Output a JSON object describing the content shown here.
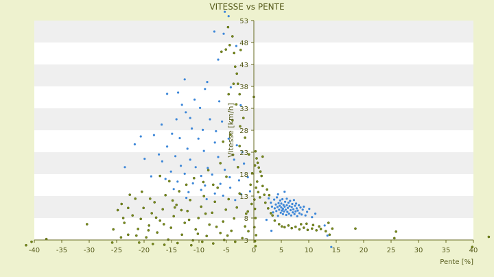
{
  "colors": {
    "background": "#eef2cf",
    "plot_band_light": "#ffffff",
    "plot_band_dark": "#efefef",
    "axis": "#66691f",
    "text": "#555a1a",
    "series_1": "#3d87d8",
    "series_2": "#7a8c1a"
  },
  "chart_data": {
    "type": "scatter",
    "title": "VITESSE vs PENTE",
    "xlabel": "Pente [%]",
    "ylabel": "Vitesse [km/h]",
    "xlim": [
      -40,
      40
    ],
    "ylim": [
      3,
      53
    ],
    "x_ticks": [
      -40,
      -35,
      -30,
      -25,
      -20,
      -15,
      -10,
      -5,
      0,
      5,
      10,
      15,
      20,
      25,
      30,
      35,
      40
    ],
    "y_ticks": [
      3,
      8,
      13,
      18,
      23,
      28,
      33,
      38,
      43,
      48,
      53
    ],
    "y_axis_position": "x = 0",
    "background_bands": "alternating white/grey per 5 km/h",
    "legend": "none",
    "series": [
      {
        "color": "#3d87d8",
        "points": [
          [
            -5.3,
            55.0
          ],
          [
            -4.6,
            54.0
          ],
          [
            -7.2,
            50.5
          ],
          [
            -5.5,
            50.0
          ],
          [
            -3.2,
            47.2
          ],
          [
            -6.5,
            44.1
          ],
          [
            -8.5,
            39.0
          ],
          [
            -4.2,
            37.8
          ],
          [
            -12.6,
            39.6
          ],
          [
            -13.8,
            36.6
          ],
          [
            -10.8,
            35.0
          ],
          [
            -15.8,
            36.3
          ],
          [
            -9.8,
            33.1
          ],
          [
            -12.4,
            32.1
          ],
          [
            -14.1,
            30.5
          ],
          [
            -8.0,
            30.5
          ],
          [
            -5.8,
            30.0
          ],
          [
            -11.3,
            28.4
          ],
          [
            -16.8,
            29.3
          ],
          [
            -18.2,
            26.9
          ],
          [
            -21.7,
            24.8
          ],
          [
            -13.5,
            26.2
          ],
          [
            -10.1,
            26.1
          ],
          [
            -7.1,
            25.2
          ],
          [
            -15.8,
            24.3
          ],
          [
            -12.1,
            23.8
          ],
          [
            -9.1,
            23.3
          ],
          [
            -17.3,
            22.5
          ],
          [
            -14.3,
            22.1
          ],
          [
            -11.6,
            21.3
          ],
          [
            -6.5,
            21.9
          ],
          [
            -19.9,
            21.5
          ],
          [
            -16.7,
            20.9
          ],
          [
            -13.3,
            19.9
          ],
          [
            -10.6,
            19.6
          ],
          [
            -8.4,
            19.4
          ],
          [
            -5.3,
            19.0
          ],
          [
            -3.6,
            21.3
          ],
          [
            -15.1,
            18.6
          ],
          [
            -12.6,
            18.1
          ],
          [
            -9.6,
            17.6
          ],
          [
            -7.6,
            17.9
          ],
          [
            -23.5,
            19.6
          ],
          [
            -16.1,
            16.9
          ],
          [
            -13.9,
            16.3
          ],
          [
            -11.1,
            15.9
          ],
          [
            -8.9,
            15.4
          ],
          [
            -6.1,
            15.8
          ],
          [
            -4.3,
            14.9
          ],
          [
            -14.6,
            14.6
          ],
          [
            -11.9,
            13.9
          ],
          [
            -9.6,
            14.4
          ],
          [
            -7.1,
            13.6
          ],
          [
            -3.4,
            12.1
          ],
          [
            -2.3,
            13.4
          ],
          [
            -12.3,
            12.6
          ],
          [
            -8.6,
            12.3
          ],
          [
            -5.6,
            13.1
          ],
          [
            -4.4,
            17.3
          ],
          [
            -2.7,
            16.6
          ],
          [
            -18.7,
            17.5
          ],
          [
            -20.6,
            26.6
          ],
          [
            -14.9,
            27.2
          ],
          [
            -11.6,
            30.8
          ],
          [
            -9.3,
            28.1
          ],
          [
            -6.9,
            27.8
          ],
          [
            -4.6,
            26.1
          ],
          [
            -3.1,
            24.6
          ],
          [
            -2.4,
            33.7
          ],
          [
            -2.1,
            23.0
          ],
          [
            -6.3,
            34.6
          ],
          [
            -8.9,
            37.4
          ],
          [
            -13.1,
            33.8
          ],
          [
            -1.8,
            20.4
          ],
          [
            -1.1,
            17.3
          ],
          [
            -0.7,
            14.1
          ],
          [
            2.7,
            12.5
          ],
          [
            3.1,
            11.5
          ],
          [
            3.3,
            10.6
          ],
          [
            3.5,
            9.3
          ],
          [
            3.7,
            12.2
          ],
          [
            3.8,
            10.2
          ],
          [
            4.0,
            11.1
          ],
          [
            4.1,
            9.6
          ],
          [
            4.2,
            12.7
          ],
          [
            4.3,
            10.5
          ],
          [
            4.4,
            8.5
          ],
          [
            4.5,
            11.4
          ],
          [
            4.6,
            9.9
          ],
          [
            4.7,
            10.8
          ],
          [
            4.8,
            12.0
          ],
          [
            4.9,
            9.2
          ],
          [
            5.0,
            10.4
          ],
          [
            5.0,
            11.3
          ],
          [
            5.1,
            9.7
          ],
          [
            5.2,
            12.3
          ],
          [
            5.3,
            10.1
          ],
          [
            5.3,
            8.9
          ],
          [
            5.4,
            11.0
          ],
          [
            5.5,
            9.5
          ],
          [
            5.6,
            10.6
          ],
          [
            5.7,
            11.7
          ],
          [
            5.8,
            9.9
          ],
          [
            5.9,
            8.7
          ],
          [
            6.0,
            10.9
          ],
          [
            6.0,
            12.4
          ],
          [
            6.1,
            9.4
          ],
          [
            6.2,
            10.3
          ],
          [
            6.3,
            11.5
          ],
          [
            6.4,
            9.0
          ],
          [
            6.5,
            10.7
          ],
          [
            6.6,
            11.9
          ],
          [
            6.7,
            9.8
          ],
          [
            6.8,
            8.6
          ],
          [
            6.9,
            10.5
          ],
          [
            7.0,
            11.2
          ],
          [
            7.1,
            9.3
          ],
          [
            7.2,
            10.0
          ],
          [
            7.3,
            12.1
          ],
          [
            7.4,
            8.9
          ],
          [
            7.5,
            10.8
          ],
          [
            7.6,
            9.5
          ],
          [
            7.7,
            11.3
          ],
          [
            7.8,
            10.2
          ],
          [
            7.9,
            8.4
          ],
          [
            8.0,
            9.7
          ],
          [
            8.2,
            10.9
          ],
          [
            8.3,
            9.1
          ],
          [
            8.5,
            10.4
          ],
          [
            8.7,
            8.8
          ],
          [
            8.9,
            9.9
          ],
          [
            9.1,
            10.6
          ],
          [
            9.4,
            8.6
          ],
          [
            9.7,
            9.4
          ],
          [
            10.1,
            10.1
          ],
          [
            10.6,
            8.2
          ],
          [
            11.2,
            9.0
          ],
          [
            4.4,
            13.4
          ],
          [
            5.6,
            14.0
          ],
          [
            2.3,
            7.6
          ],
          [
            3.2,
            5.1
          ],
          [
            12.9,
            6.3
          ],
          [
            14.1,
            1.4
          ],
          [
            13.4,
            4.0
          ]
        ]
      },
      {
        "color": "#7a8c1a",
        "points": [
          [
            -4.7,
            51.5
          ],
          [
            -3.9,
            49.4
          ],
          [
            -4.4,
            47.4
          ],
          [
            -5.1,
            46.4
          ],
          [
            -5.9,
            45.9
          ],
          [
            -3.6,
            45.6
          ],
          [
            -2.4,
            46.3
          ],
          [
            -3.4,
            42.5
          ],
          [
            -3.1,
            40.9
          ],
          [
            -2.9,
            38.6
          ],
          [
            -3.7,
            38.6
          ],
          [
            -2.6,
            36.2
          ],
          [
            -4.6,
            36.2
          ],
          [
            -3.2,
            33.9
          ],
          [
            -1.9,
            30.8
          ],
          [
            -3.9,
            30.3
          ],
          [
            -2.5,
            28.9
          ],
          [
            -4.3,
            27.0
          ],
          [
            -1.6,
            26.3
          ],
          [
            -5.6,
            25.4
          ],
          [
            -2.6,
            24.4
          ],
          [
            -0.9,
            22.5
          ],
          [
            0.3,
            23.2
          ],
          [
            0.5,
            21.6
          ],
          [
            0.7,
            20.6
          ],
          [
            0.9,
            19.5
          ],
          [
            1.2,
            18.6
          ],
          [
            1.4,
            17.6
          ],
          [
            1.6,
            22.0
          ],
          [
            0.2,
            20.0
          ],
          [
            0.6,
            16.3
          ],
          [
            0.4,
            14.9
          ],
          [
            0.8,
            13.9
          ],
          [
            1.1,
            12.7
          ],
          [
            1.6,
            15.3
          ],
          [
            1.9,
            13.3
          ],
          [
            2.4,
            14.5
          ],
          [
            2.8,
            13.2
          ],
          [
            2.1,
            11.5
          ],
          [
            2.6,
            10.2
          ],
          [
            3.1,
            9.1
          ],
          [
            3.4,
            8.6
          ],
          [
            3.8,
            7.4
          ],
          [
            4.6,
            6.6
          ],
          [
            5.1,
            6.1
          ],
          [
            5.6,
            5.9
          ],
          [
            6.3,
            6.3
          ],
          [
            6.9,
            5.7
          ],
          [
            7.6,
            6.0
          ],
          [
            8.3,
            5.4
          ],
          [
            9.1,
            5.8
          ],
          [
            9.8,
            5.3
          ],
          [
            10.6,
            5.6
          ],
          [
            11.4,
            5.2
          ],
          [
            12.2,
            5.5
          ],
          [
            13.1,
            5.0
          ],
          [
            8.6,
            6.6
          ],
          [
            9.6,
            6.7
          ],
          [
            10.8,
            6.4
          ],
          [
            11.9,
            6.1
          ],
          [
            13.6,
            6.9
          ],
          [
            14.3,
            5.6
          ],
          [
            13.8,
            4.2
          ],
          [
            0.1,
            12.2
          ],
          [
            0.2,
            10.1
          ],
          [
            0.3,
            8.0
          ],
          [
            0.1,
            5.9
          ],
          [
            0.4,
            4.1
          ],
          [
            0.2,
            2.7
          ],
          [
            0.3,
            1.6
          ],
          [
            0.0,
            35.6
          ],
          [
            -0.3,
            18.2
          ],
          [
            -0.6,
            15.6
          ],
          [
            -0.4,
            11.2
          ],
          [
            -1.1,
            9.5
          ],
          [
            18.5,
            5.6
          ],
          [
            25.6,
            3.4
          ],
          [
            25.9,
            4.9
          ],
          [
            39.8,
            1.4
          ],
          [
            42.8,
            3.7
          ],
          [
            -41.5,
            1.8
          ],
          [
            -40.5,
            2.6
          ],
          [
            -37.8,
            3.2
          ],
          [
            -30.4,
            6.6
          ],
          [
            -25.6,
            5.4
          ],
          [
            -25.8,
            2.4
          ],
          [
            -24.8,
            9.8
          ],
          [
            -24.1,
            11.2
          ],
          [
            -23.6,
            6.9
          ],
          [
            -22.9,
            4.2
          ],
          [
            -22.1,
            8.6
          ],
          [
            -21.6,
            12.4
          ],
          [
            -21.1,
            5.5
          ],
          [
            -20.6,
            7.8
          ],
          [
            -20.1,
            10.3
          ],
          [
            -19.6,
            3.6
          ],
          [
            -19.1,
            6.3
          ],
          [
            -18.6,
            9.1
          ],
          [
            -18.1,
            11.6
          ],
          [
            -17.6,
            4.7
          ],
          [
            -17.1,
            7.4
          ],
          [
            -16.6,
            10.0
          ],
          [
            -16.1,
            13.2
          ],
          [
            -15.6,
            3.1
          ],
          [
            -15.1,
            5.8
          ],
          [
            -14.6,
            8.4
          ],
          [
            -14.1,
            11.0
          ],
          [
            -13.6,
            14.1
          ],
          [
            -13.1,
            4.2
          ],
          [
            -12.6,
            6.9
          ],
          [
            -12.1,
            9.6
          ],
          [
            -11.6,
            12.1
          ],
          [
            -11.1,
            2.9
          ],
          [
            -10.6,
            5.4
          ],
          [
            -10.1,
            8.0
          ],
          [
            -9.6,
            10.6
          ],
          [
            -9.1,
            13.0
          ],
          [
            -8.6,
            3.9
          ],
          [
            -8.1,
            6.5
          ],
          [
            -7.6,
            9.2
          ],
          [
            -7.1,
            11.7
          ],
          [
            -6.6,
            14.9
          ],
          [
            -6.1,
            4.6
          ],
          [
            -5.6,
            7.2
          ],
          [
            -5.1,
            9.9
          ],
          [
            -4.6,
            12.3
          ],
          [
            -4.1,
            5.1
          ],
          [
            -3.6,
            7.9
          ],
          [
            -3.1,
            10.4
          ],
          [
            -2.6,
            13.6
          ],
          [
            -2.1,
            3.4
          ],
          [
            -1.6,
            6.1
          ],
          [
            -22.6,
            13.3
          ],
          [
            -20.9,
            2.4
          ],
          [
            -18.4,
            2.1
          ],
          [
            -16.3,
            1.9
          ],
          [
            -13.9,
            2.3
          ],
          [
            -11.4,
            1.8
          ],
          [
            -9.4,
            2.6
          ],
          [
            -7.4,
            2.2
          ],
          [
            -5.4,
            3.0
          ],
          [
            -24.2,
            3.6
          ],
          [
            -21.4,
            4.0
          ],
          [
            -19.2,
            5.2
          ],
          [
            -17.8,
            8.1
          ],
          [
            -16.4,
            6.6
          ],
          [
            -14.8,
            12.0
          ],
          [
            -13.2,
            9.8
          ],
          [
            -12.3,
            15.6
          ],
          [
            -10.9,
            17.1
          ],
          [
            -9.2,
            16.2
          ],
          [
            -8.3,
            18.9
          ],
          [
            -7.4,
            15.6
          ],
          [
            -6.1,
            20.5
          ],
          [
            -5.0,
            17.4
          ],
          [
            -3.8,
            22.4
          ],
          [
            -2.9,
            19.6
          ],
          [
            -17.1,
            17.6
          ],
          [
            -15.4,
            16.4
          ],
          [
            -20.4,
            14.0
          ],
          [
            -22.9,
            10.3
          ],
          [
            -23.8,
            8.0
          ],
          [
            -18.9,
            12.4
          ],
          [
            -14.4,
            10.4
          ],
          [
            -11.8,
            7.6
          ],
          [
            -10.2,
            4.4
          ],
          [
            -8.8,
            9.0
          ],
          [
            -6.8,
            6.0
          ],
          [
            -4.8,
            4.0
          ],
          [
            -3.4,
            2.6
          ],
          [
            -1.4,
            9.0
          ],
          [
            -1.0,
            5.0
          ]
        ]
      }
    ]
  }
}
